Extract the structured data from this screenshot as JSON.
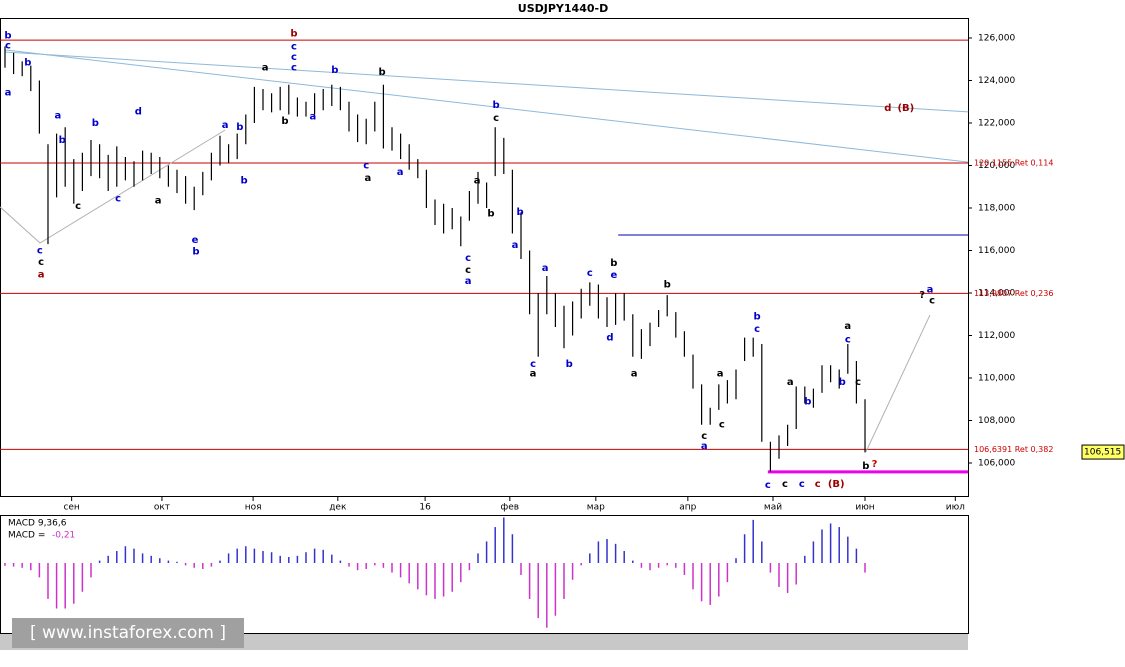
{
  "chart_data": [
    {
      "type": "ohlc",
      "title": "USDJPY1440-D",
      "color": "#000000",
      "x": [
        0,
        2,
        4,
        6,
        8,
        10,
        12,
        14,
        16,
        18,
        20,
        22,
        24,
        26,
        28,
        30,
        32,
        34,
        36,
        38,
        40,
        42,
        44,
        46,
        48,
        50,
        52,
        54,
        56,
        58,
        60,
        62,
        64,
        66,
        68,
        70,
        72,
        74,
        76,
        78,
        80,
        82,
        84,
        86,
        88,
        90,
        92,
        94,
        96,
        98,
        100,
        102,
        104,
        106,
        108,
        110,
        112,
        114,
        116,
        118,
        120,
        122,
        124,
        126,
        128,
        130,
        132,
        134,
        136,
        138,
        140,
        142,
        144,
        146,
        148,
        150,
        152,
        154,
        156,
        158,
        160,
        162,
        164,
        166,
        168,
        170,
        172,
        174,
        176,
        178,
        180,
        182,
        184,
        186,
        188,
        190,
        192,
        194,
        196,
        198,
        200
      ],
      "high": [
        125.6,
        125.3,
        124.9,
        124.7,
        124.0,
        121.0,
        121.5,
        121.8,
        120.3,
        120.6,
        121.2,
        121.0,
        120.5,
        120.9,
        120.4,
        120.2,
        120.7,
        120.6,
        120.4,
        120.0,
        119.8,
        119.5,
        119.0,
        119.7,
        120.6,
        121.4,
        121.0,
        121.5,
        122.4,
        123.7,
        123.6,
        123.4,
        123.7,
        123.8,
        123.2,
        123.0,
        123.4,
        123.6,
        123.8,
        123.7,
        123.0,
        122.4,
        122.2,
        123.0,
        123.8,
        121.8,
        121.5,
        121.0,
        120.3,
        119.8,
        118.4,
        118.2,
        118.0,
        117.6,
        118.8,
        119.7,
        119.2,
        121.8,
        121.3,
        119.8,
        117.8,
        116.0,
        114.0,
        114.8,
        114.0,
        113.4,
        113.6,
        114.2,
        114.5,
        114.4,
        113.8,
        114.0,
        114.0,
        113.0,
        112.3,
        112.6,
        113.2,
        113.9,
        113.1,
        112.2,
        111.1,
        109.7,
        108.6,
        109.7,
        109.9,
        110.4,
        111.9,
        111.9,
        111.6,
        107.0,
        107.3,
        107.8,
        109.6,
        109.6,
        109.5,
        110.6,
        110.6,
        110.4,
        111.6,
        110.8,
        109.0
      ],
      "low": [
        124.6,
        124.3,
        124.2,
        123.5,
        121.5,
        116.3,
        118.5,
        119.0,
        118.2,
        118.8,
        119.5,
        119.4,
        118.8,
        119.0,
        119.3,
        119.0,
        119.3,
        119.6,
        119.4,
        119.0,
        118.7,
        118.2,
        117.9,
        118.6,
        119.3,
        120.0,
        120.1,
        120.3,
        121.0,
        122.0,
        122.6,
        122.5,
        122.6,
        122.4,
        122.3,
        122.3,
        122.4,
        122.6,
        122.8,
        122.6,
        121.6,
        121.1,
        121.0,
        121.6,
        120.8,
        120.7,
        120.3,
        119.8,
        119.4,
        118.0,
        117.2,
        116.8,
        117.0,
        116.2,
        117.4,
        118.2,
        118.0,
        119.5,
        119.6,
        116.8,
        115.6,
        113.0,
        111.0,
        113.0,
        112.4,
        111.4,
        112.0,
        112.8,
        113.4,
        112.8,
        112.4,
        112.5,
        112.7,
        111.0,
        110.9,
        111.5,
        112.4,
        112.9,
        111.9,
        111.0,
        109.5,
        107.8,
        107.8,
        108.5,
        108.8,
        109.0,
        110.8,
        111.0,
        107.0,
        105.6,
        106.2,
        106.8,
        107.6,
        108.8,
        108.6,
        109.3,
        109.8,
        109.5,
        110.2,
        108.8,
        106.5
      ],
      "xlim": [
        -1.16,
        223.95
      ],
      "ylim": [
        104.4,
        126.94
      ],
      "yticks": [
        {
          "value": 106,
          "label": "106,000"
        },
        {
          "value": 108,
          "label": "108,000"
        },
        {
          "value": 110,
          "label": "110,000"
        },
        {
          "value": 112,
          "label": "112,000"
        },
        {
          "value": 114,
          "label": "114,000"
        },
        {
          "value": 116,
          "label": "116,000"
        },
        {
          "value": 118,
          "label": "118,000"
        },
        {
          "value": 120,
          "label": "120,000"
        },
        {
          "value": 122,
          "label": "122,000"
        },
        {
          "value": 124,
          "label": "124,000"
        },
        {
          "value": 126,
          "label": "126,000"
        }
      ],
      "xticks": [
        {
          "value": 15.5,
          "label": "сен"
        },
        {
          "value": 36.5,
          "label": "окт"
        },
        {
          "value": 57.7,
          "label": "ноя"
        },
        {
          "value": 77.4,
          "label": "дек"
        },
        {
          "value": 97.7,
          "label": "16"
        },
        {
          "value": 117.4,
          "label": "фев"
        },
        {
          "value": 137.4,
          "label": "мар"
        },
        {
          "value": 158.8,
          "label": "апр"
        },
        {
          "value": 178.6,
          "label": "май"
        },
        {
          "value": 200,
          "label": "июн"
        },
        {
          "value": 221,
          "label": "июл"
        }
      ],
      "last_price": {
        "value": 106.515,
        "label": "106,515"
      },
      "levels": [
        {
          "value": 125.9,
          "color": "#cc0000"
        },
        {
          "value": 120.1155,
          "label": "120,1155 Ret 0,114",
          "color": "#cc0000"
        },
        {
          "value": 113.9807,
          "label": "113,9807 Ret 0,236",
          "color": "#cc0000"
        },
        {
          "value": 106.6391,
          "label": "106,6391 Ret 0,382",
          "color": "#cc0000"
        }
      ],
      "trend_lines": [
        {
          "x": [
            0,
            224
          ],
          "y": [
            125.34,
            122.52
          ],
          "color": "#8fb8d8"
        },
        {
          "x": [
            0,
            224
          ],
          "y": [
            125.44,
            120.16
          ],
          "color": "#8fb8d8"
        },
        {
          "x": [
            -1.16,
            8.14,
            51.2
          ],
          "y": [
            118.05,
            116.35,
            121.67
          ],
          "color": "#b0b0b0"
        },
        {
          "x": [
            200.2,
            215.1
          ],
          "y": [
            106.52,
            112.96
          ],
          "color": "#b0b0b0"
        },
        {
          "x": [
            142.6,
            224
          ],
          "y": [
            116.73,
            116.73
          ],
          "color": "#0000aa"
        },
        {
          "x": [
            177.4,
            224
          ],
          "y": [
            105.58,
            105.58
          ],
          "color": "#ee00ee"
        }
      ],
      "annotations": [
        {
          "text": "b",
          "x": 0.7,
          "y": 126.12,
          "color": "#0000cc"
        },
        {
          "text": "c",
          "x": 0.7,
          "y": 125.65,
          "color": "#0000cc"
        },
        {
          "text": "b",
          "x": 5.3,
          "y": 124.85,
          "color": "#0000cc"
        },
        {
          "text": "a",
          "x": 0.7,
          "y": 123.44,
          "color": "#0000cc"
        },
        {
          "text": "a",
          "x": 12.3,
          "y": 122.36,
          "color": "#0000cc"
        },
        {
          "text": "c",
          "x": 8.1,
          "y": 116.0,
          "color": "#0000cc"
        },
        {
          "text": "c",
          "x": 8.4,
          "y": 115.47,
          "color": "#000000"
        },
        {
          "text": "a",
          "x": 8.4,
          "y": 114.86,
          "color": "#990000"
        },
        {
          "text": "b",
          "x": 13.3,
          "y": 121.2,
          "color": "#0000cc"
        },
        {
          "text": "c",
          "x": 17,
          "y": 118.1,
          "color": "#000000"
        },
        {
          "text": "b",
          "x": 21,
          "y": 122.0,
          "color": "#0000cc"
        },
        {
          "text": "c",
          "x": 26.3,
          "y": 118.45,
          "color": "#0000cc"
        },
        {
          "text": "d",
          "x": 31,
          "y": 122.55,
          "color": "#0000cc"
        },
        {
          "text": "a",
          "x": 35.6,
          "y": 118.35,
          "color": "#000000"
        },
        {
          "text": "e",
          "x": 44.2,
          "y": 116.5,
          "color": "#0000cc"
        },
        {
          "text": "b",
          "x": 44.4,
          "y": 115.95,
          "color": "#0000cc"
        },
        {
          "text": "a",
          "x": 51.2,
          "y": 121.9,
          "color": "#0000cc"
        },
        {
          "text": "b",
          "x": 54.6,
          "y": 121.8,
          "color": "#0000cc"
        },
        {
          "text": "b",
          "x": 55.6,
          "y": 119.3,
          "color": "#0000cc"
        },
        {
          "text": "b",
          "x": 67.2,
          "y": 126.2,
          "color": "#990000"
        },
        {
          "text": "c",
          "x": 67.2,
          "y": 125.6,
          "color": "#0000cc"
        },
        {
          "text": "c",
          "x": 67.2,
          "y": 125.1,
          "color": "#0000cc"
        },
        {
          "text": "c",
          "x": 67.2,
          "y": 124.6,
          "color": "#0000cc"
        },
        {
          "text": "a",
          "x": 60.5,
          "y": 124.6,
          "color": "#000000"
        },
        {
          "text": "b",
          "x": 65.1,
          "y": 122.1,
          "color": "#000000"
        },
        {
          "text": "a",
          "x": 71.6,
          "y": 122.3,
          "color": "#0000cc"
        },
        {
          "text": "b",
          "x": 76.7,
          "y": 124.5,
          "color": "#0000cc"
        },
        {
          "text": "b",
          "x": 87.7,
          "y": 124.4,
          "color": "#000000"
        },
        {
          "text": "c",
          "x": 84,
          "y": 120.0,
          "color": "#0000cc"
        },
        {
          "text": "a",
          "x": 84.4,
          "y": 119.4,
          "color": "#000000"
        },
        {
          "text": "a",
          "x": 91.9,
          "y": 119.7,
          "color": "#0000cc"
        },
        {
          "text": "b",
          "x": 114.2,
          "y": 122.85,
          "color": "#0000cc"
        },
        {
          "text": "c",
          "x": 114.2,
          "y": 122.24,
          "color": "#000000"
        },
        {
          "text": "a",
          "x": 109.8,
          "y": 119.3,
          "color": "#000000"
        },
        {
          "text": "b",
          "x": 113,
          "y": 117.75,
          "color": "#000000"
        },
        {
          "text": "c",
          "x": 107.7,
          "y": 115.65,
          "color": "#0000cc"
        },
        {
          "text": "c",
          "x": 107.7,
          "y": 115.08,
          "color": "#000000"
        },
        {
          "text": "a",
          "x": 107.7,
          "y": 114.56,
          "color": "#0000cc"
        },
        {
          "text": "b",
          "x": 119.8,
          "y": 117.8,
          "color": "#0000cc"
        },
        {
          "text": "a",
          "x": 118.6,
          "y": 116.25,
          "color": "#0000cc"
        },
        {
          "text": "c",
          "x": 122.8,
          "y": 110.66,
          "color": "#0000cc"
        },
        {
          "text": "a",
          "x": 122.8,
          "y": 110.2,
          "color": "#000000"
        },
        {
          "text": "b",
          "x": 131.2,
          "y": 110.66,
          "color": "#0000cc"
        },
        {
          "text": "a",
          "x": 125.6,
          "y": 115.18,
          "color": "#0000cc"
        },
        {
          "text": "c",
          "x": 136,
          "y": 114.95,
          "color": "#0000cc"
        },
        {
          "text": "b",
          "x": 141.6,
          "y": 115.4,
          "color": "#000000"
        },
        {
          "text": "e",
          "x": 141.6,
          "y": 114.85,
          "color": "#0000cc"
        },
        {
          "text": "d",
          "x": 140.7,
          "y": 111.9,
          "color": "#0000cc"
        },
        {
          "text": "a",
          "x": 146.3,
          "y": 110.2,
          "color": "#000000"
        },
        {
          "text": "b",
          "x": 154,
          "y": 114.4,
          "color": "#000000"
        },
        {
          "text": "c",
          "x": 162.6,
          "y": 107.27,
          "color": "#000000"
        },
        {
          "text": "a",
          "x": 162.6,
          "y": 106.8,
          "color": "#0000cc"
        },
        {
          "text": "a",
          "x": 166.3,
          "y": 110.2,
          "color": "#000000"
        },
        {
          "text": "c",
          "x": 166.7,
          "y": 107.8,
          "color": "#000000"
        },
        {
          "text": "b",
          "x": 174.9,
          "y": 112.9,
          "color": "#0000cc"
        },
        {
          "text": "c",
          "x": 174.9,
          "y": 112.3,
          "color": "#0000cc"
        },
        {
          "text": "c",
          "x": 177.4,
          "y": 104.96,
          "color": "#0000cc"
        },
        {
          "text": "c",
          "x": 181.4,
          "y": 105.0,
          "color": "#000000"
        },
        {
          "text": "c",
          "x": 185.3,
          "y": 105.0,
          "color": "#0000cc"
        },
        {
          "text": "c",
          "x": 189,
          "y": 105.0,
          "color": "#990000"
        },
        {
          "text": "(B)",
          "x": 193.3,
          "y": 105.0,
          "color": "#990000"
        },
        {
          "text": "a",
          "x": 182.6,
          "y": 109.8,
          "color": "#000000"
        },
        {
          "text": "b",
          "x": 186.7,
          "y": 108.9,
          "color": "#0000cc"
        },
        {
          "text": "b",
          "x": 194.7,
          "y": 109.8,
          "color": "#0000cc"
        },
        {
          "text": "a",
          "x": 196,
          "y": 112.45,
          "color": "#000000"
        },
        {
          "text": "c",
          "x": 196,
          "y": 111.8,
          "color": "#0000cc"
        },
        {
          "text": "c",
          "x": 198.4,
          "y": 109.8,
          "color": "#000000"
        },
        {
          "text": "b",
          "x": 200.2,
          "y": 105.87,
          "color": "#000000"
        },
        {
          "text": "?",
          "x": 202.2,
          "y": 105.96,
          "color": "#cc0000"
        },
        {
          "text": "?",
          "x": 213.3,
          "y": 113.9,
          "color": "#000000"
        },
        {
          "text": "a",
          "x": 215.1,
          "y": 114.17,
          "color": "#0000cc"
        },
        {
          "text": "c",
          "x": 215.6,
          "y": 113.65,
          "color": "#000000"
        },
        {
          "text": "d",
          "x": 205.3,
          "y": 122.7,
          "color": "#990000"
        },
        {
          "text": "(B)",
          "x": 209.5,
          "y": 122.7,
          "color": "#990000"
        }
      ]
    },
    {
      "type": "bar",
      "title": "MACD 9,36,6",
      "indicator_label": "MACD =",
      "current": {
        "value": -0.21,
        "label": "-0,21"
      },
      "positive_color": "#3333cc",
      "negative_color": "#cc33cc",
      "x": [
        0,
        2,
        4,
        6,
        8,
        10,
        12,
        14,
        16,
        18,
        20,
        22,
        24,
        26,
        28,
        30,
        32,
        34,
        36,
        38,
        40,
        42,
        44,
        46,
        48,
        50,
        52,
        54,
        56,
        58,
        60,
        62,
        64,
        66,
        68,
        70,
        72,
        74,
        76,
        78,
        80,
        82,
        84,
        86,
        88,
        90,
        92,
        94,
        96,
        98,
        100,
        102,
        104,
        106,
        108,
        110,
        112,
        114,
        116,
        118,
        120,
        122,
        124,
        126,
        128,
        130,
        132,
        134,
        136,
        138,
        140,
        142,
        144,
        146,
        148,
        150,
        152,
        154,
        156,
        158,
        160,
        162,
        164,
        166,
        168,
        170,
        172,
        174,
        176,
        178,
        180,
        182,
        184,
        186,
        188,
        190,
        192,
        194,
        196,
        198,
        200
      ],
      "values": [
        -0.12,
        -0.15,
        -0.2,
        -0.3,
        -0.6,
        -1.5,
        -1.9,
        -1.9,
        -1.7,
        -1.2,
        -0.6,
        0.1,
        0.3,
        0.5,
        0.7,
        0.6,
        0.4,
        0.3,
        0.2,
        0.1,
        0.05,
        -0.1,
        -0.2,
        -0.25,
        -0.15,
        0.1,
        0.4,
        0.6,
        0.7,
        0.6,
        0.5,
        0.45,
        0.3,
        0.25,
        0.3,
        0.45,
        0.6,
        0.55,
        0.35,
        0.1,
        -0.15,
        -0.3,
        -0.25,
        -0.1,
        -0.2,
        -0.4,
        -0.6,
        -0.85,
        -1.1,
        -1.35,
        -1.5,
        -1.4,
        -1.2,
        -0.8,
        -0.3,
        0.4,
        0.9,
        1.5,
        1.9,
        1.2,
        -0.5,
        -1.5,
        -2.3,
        -2.7,
        -2.2,
        -1.5,
        -0.7,
        -0.1,
        0.4,
        0.9,
        1.0,
        0.8,
        0.5,
        0.1,
        -0.2,
        -0.3,
        -0.2,
        -0.1,
        -0.2,
        -0.5,
        -1.1,
        -1.6,
        -1.75,
        -1.4,
        -0.8,
        0.2,
        1.2,
        1.8,
        0.9,
        -0.4,
        -1.0,
        -1.25,
        -0.9,
        0.3,
        0.9,
        1.4,
        1.65,
        1.5,
        1.1,
        0.6,
        -0.4
      ],
      "xlim": [
        -1.16,
        223.95
      ],
      "ylim": [
        -2.88,
        1.92
      ]
    }
  ],
  "watermark": "[ www.instaforex.com ]"
}
